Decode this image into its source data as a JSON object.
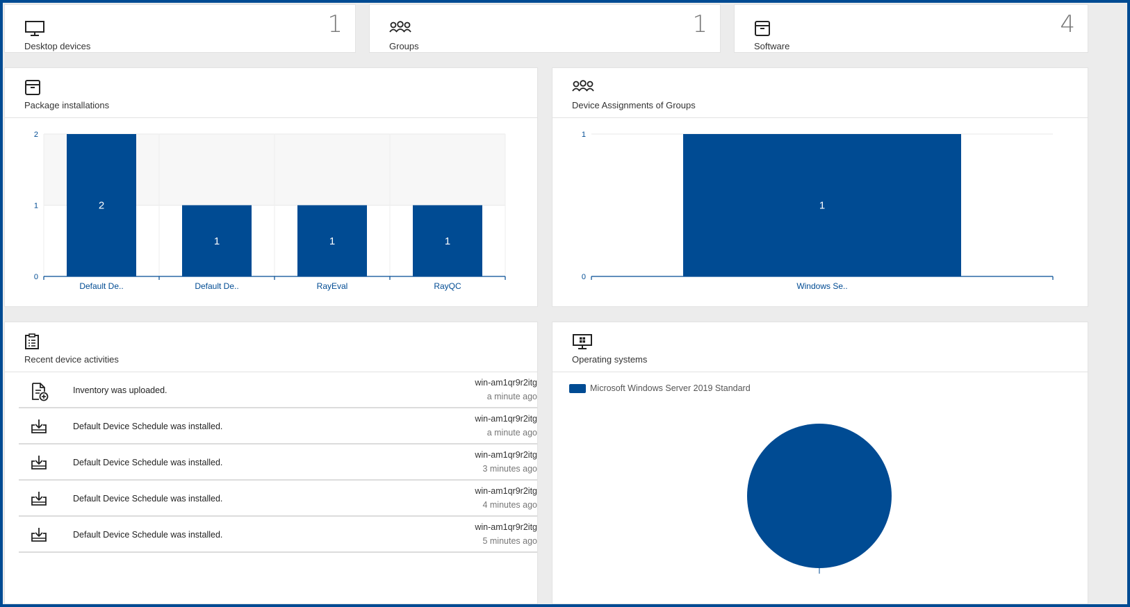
{
  "colors": {
    "accent": "#004b93",
    "frame": "#004b93",
    "background": "#ececec"
  },
  "stats": [
    {
      "label": "Desktop devices",
      "count": "1",
      "icon": "monitor-icon"
    },
    {
      "label": "Groups",
      "count": "1",
      "icon": "groups-icon"
    },
    {
      "label": "Software",
      "count": "4",
      "icon": "package-icon"
    }
  ],
  "panels": {
    "packages": {
      "title": "Package installations",
      "icon": "package-icon"
    },
    "groups": {
      "title": "Device Assignments of Groups",
      "icon": "groups-icon"
    },
    "activities": {
      "title": "Recent device activities",
      "icon": "clipboard-list-icon"
    },
    "os": {
      "title": "Operating systems",
      "icon": "windows-monitor-icon"
    }
  },
  "chart_data": [
    {
      "type": "bar",
      "categories": [
        "Default De..",
        "Default De..",
        "RayEval",
        "RayQC"
      ],
      "values": [
        2,
        1,
        1,
        1
      ],
      "yticks": [
        "0",
        "1",
        "2"
      ],
      "ylim": [
        0,
        2
      ],
      "color": "#004b93"
    },
    {
      "type": "bar",
      "categories": [
        "Windows Se.."
      ],
      "values": [
        1
      ],
      "yticks": [
        "0",
        "1"
      ],
      "ylim": [
        0,
        1
      ],
      "color": "#004b93"
    },
    {
      "type": "pie",
      "labels": [
        "Microsoft Windows Server 2019 Standard"
      ],
      "values": [
        1
      ],
      "color": "#004b93"
    }
  ],
  "activities": [
    {
      "icon": "file-add-icon",
      "text": "Inventory was uploaded.",
      "device": "win-am1qr9r2itg",
      "time": "a minute ago"
    },
    {
      "icon": "tray-download-icon",
      "text": "Default Device Schedule was installed.",
      "device": "win-am1qr9r2itg",
      "time": "a minute ago"
    },
    {
      "icon": "tray-download-icon",
      "text": "Default Device Schedule was installed.",
      "device": "win-am1qr9r2itg",
      "time": "3 minutes ago"
    },
    {
      "icon": "tray-download-icon",
      "text": "Default Device Schedule was installed.",
      "device": "win-am1qr9r2itg",
      "time": "4 minutes ago"
    },
    {
      "icon": "tray-download-icon",
      "text": "Default Device Schedule was installed.",
      "device": "win-am1qr9r2itg",
      "time": "5 minutes ago"
    }
  ]
}
